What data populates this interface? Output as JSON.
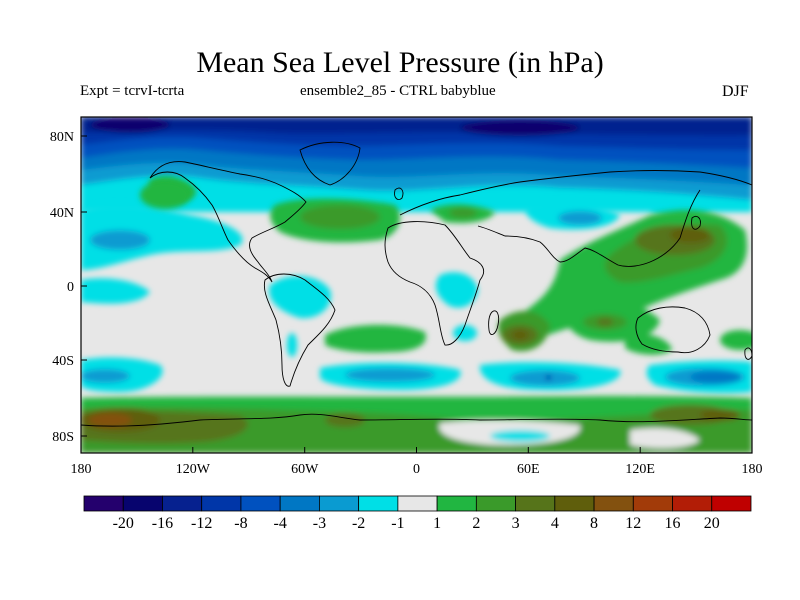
{
  "header": {
    "title": "Mean Sea Level Pressure (in hPa)",
    "experiment": "Expt = tcrvI-tcrta",
    "ensemble": "ensemble2_85 - CTRL babyblue",
    "season": "DJF"
  },
  "map": {
    "x_ticks": [
      "180",
      "120W",
      "60W",
      "0",
      "60E",
      "120E",
      "180"
    ],
    "y_ticks": [
      "80N",
      "40N",
      "0",
      "40S",
      "80S"
    ]
  },
  "colorbar": {
    "colors": [
      "#24006d",
      "#07046e",
      "#06218f",
      "#0036a8",
      "#0051bf",
      "#0077c4",
      "#0a9bd1",
      "#00dfe6",
      "#e7e7e7",
      "#21b641",
      "#3a9a2a",
      "#56741a",
      "#5f5e0c",
      "#83510f",
      "#a23b09",
      "#b21d06",
      "#bf0000"
    ],
    "labels": [
      "-20",
      "-16",
      "-12",
      "-8",
      "-4",
      "-3",
      "-2",
      "-1",
      "1",
      "2",
      "3",
      "4",
      "8",
      "12",
      "16",
      "20"
    ]
  },
  "chart_data": {
    "type": "heatmap",
    "title": "Mean Sea Level Pressure (in hPa)",
    "variable": "Mean sea level pressure difference",
    "units": "hPa",
    "season": "DJF",
    "levels": [
      -20,
      -16,
      -12,
      -8,
      -4,
      -3,
      -2,
      -1,
      1,
      2,
      3,
      4,
      8,
      12,
      16,
      20
    ],
    "xlim": [
      -180,
      180
    ],
    "ylim": [
      -90,
      90
    ],
    "regions": [
      {
        "name": "arctic-strong-low",
        "lon": [
          -180,
          180
        ],
        "lat": [
          65,
          90
        ],
        "level": "-12 to -8"
      },
      {
        "name": "northern-midlat-low",
        "lon": [
          -180,
          180
        ],
        "lat": [
          45,
          65
        ],
        "level": "-4 to -2"
      },
      {
        "name": "north-atlantic-high",
        "lon": [
          -75,
          -10
        ],
        "lat": [
          30,
          45
        ],
        "level": "2 to 4"
      },
      {
        "name": "mediterranean-high",
        "lon": [
          10,
          45
        ],
        "lat": [
          35,
          45
        ],
        "level": "2 to 3"
      },
      {
        "name": "central-asia-low",
        "lon": [
          80,
          110
        ],
        "lat": [
          30,
          45
        ],
        "level": "-2 to -4"
      },
      {
        "name": "west-pacific-high",
        "lon": [
          110,
          180
        ],
        "lat": [
          10,
          45
        ],
        "level": "3 to 8"
      },
      {
        "name": "indian-ocean-high",
        "lon": [
          40,
          140
        ],
        "lat": [
          -45,
          10
        ],
        "level": "2 to 8"
      },
      {
        "name": "south-atlantic-high",
        "lon": [
          -80,
          0
        ],
        "lat": [
          -35,
          -20
        ],
        "level": "2 to 3"
      },
      {
        "name": "tropical-america-low",
        "lon": [
          -75,
          -60
        ],
        "lat": [
          -5,
          5
        ],
        "level": "-1 to -2"
      },
      {
        "name": "southern-ocean-low",
        "lon": [
          -180,
          180
        ],
        "lat": [
          -55,
          -42
        ],
        "level": "-2 to -4"
      },
      {
        "name": "antarctic-high",
        "lon": [
          -180,
          180
        ],
        "lat": [
          -90,
          -65
        ],
        "level": "4 to 12"
      }
    ]
  }
}
